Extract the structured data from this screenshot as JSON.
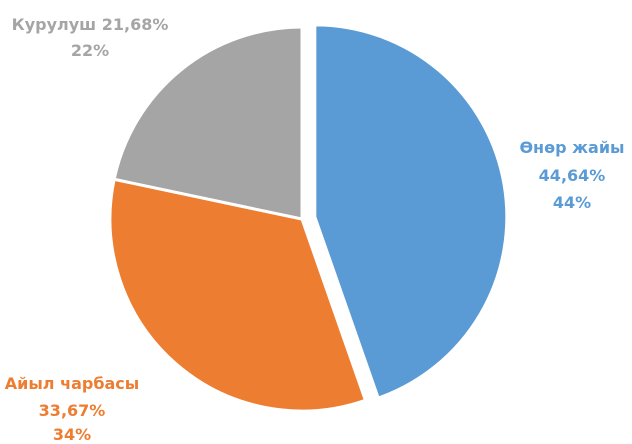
{
  "chart_data": {
    "type": "pie",
    "title": "",
    "start_angle_deg": 0,
    "direction": "clockwise",
    "slices": [
      {
        "name": "Өнөр жайы",
        "value": 44.64,
        "label": "44,64%",
        "rounded": "44%",
        "color": "#5b9bd5",
        "explode": true
      },
      {
        "name": "Айыл чарбасы",
        "value": 33.67,
        "label": "33,67%",
        "rounded": "34%",
        "color": "#ed7d31",
        "explode": false
      },
      {
        "name": "Курулуш",
        "value": 21.68,
        "label": "21,68%",
        "rounded": "22%",
        "color": "#a5a5a5",
        "explode": false
      }
    ]
  }
}
